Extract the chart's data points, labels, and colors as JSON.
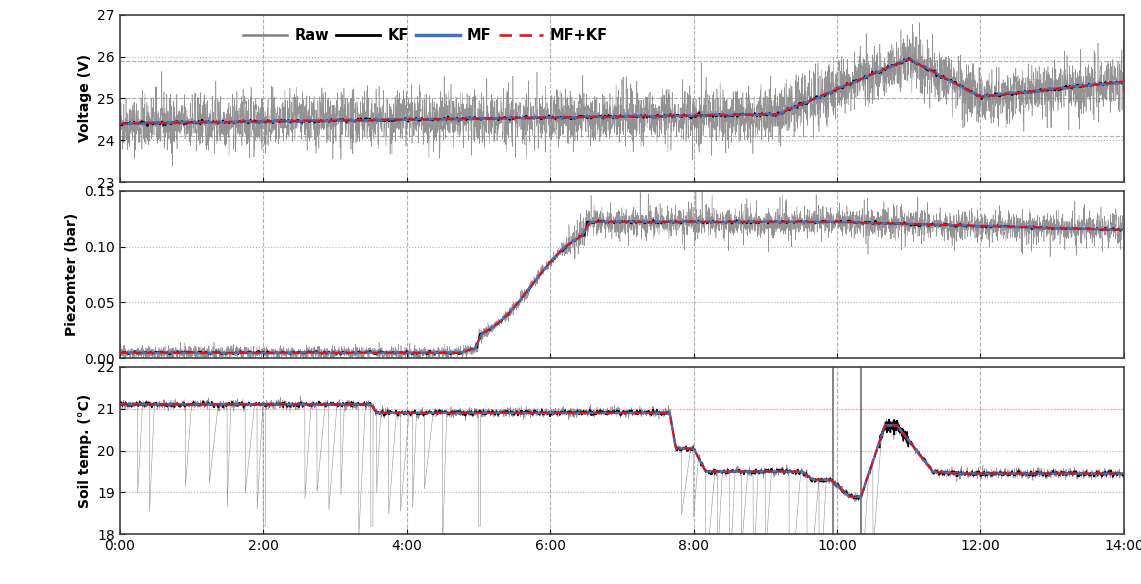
{
  "x_ticks": [
    "0:00",
    "2:00",
    "4:00",
    "6:00",
    "8:00",
    "10:00",
    "12:00",
    "14:00"
  ],
  "x_tick_positions": [
    0,
    120,
    240,
    360,
    480,
    600,
    720,
    840
  ],
  "total_points": 5000,
  "voltage_ylim": [
    23,
    27
  ],
  "voltage_yticks": [
    23,
    24,
    25,
    26,
    27
  ],
  "voltage_ylabel": "Voltage (V)",
  "piezo_ylim": [
    0.0,
    0.15
  ],
  "piezo_yticks": [
    0.0,
    0.05,
    0.1,
    0.15
  ],
  "piezo_ylabel": "Piezomter (bar)",
  "soil_ylim": [
    18,
    22
  ],
  "soil_yticks": [
    18,
    19,
    20,
    21,
    22
  ],
  "soil_ylabel": "Soil temp. (°C)",
  "raw_color": "#808080",
  "kf_color": "#000000",
  "mf_color": "#4472C4",
  "mfkf_color": "#FF0000",
  "grid_color_dash": "#b0b0b0",
  "grid_color_dot": "#b0b0b0",
  "background_color": "#ffffff"
}
